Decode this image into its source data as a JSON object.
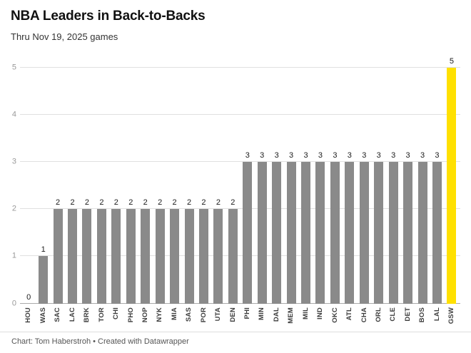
{
  "header": {
    "title": "NBA Leaders in Back-to-Backs",
    "subtitle": "Thru Nov 19, 2025 games"
  },
  "footer": {
    "credit": "Chart: Tom Haberstroh • Created with Datawrapper"
  },
  "chart_data": {
    "type": "bar",
    "title": "NBA Leaders in Back-to-Backs",
    "subtitle": "Thru Nov 19, 2025 games",
    "categories": [
      "HOU",
      "WAS",
      "SAC",
      "LAC",
      "BRK",
      "TOR",
      "CHI",
      "PHO",
      "NOP",
      "NYK",
      "MIA",
      "SAS",
      "POR",
      "UTA",
      "DEN",
      "PHI",
      "MIN",
      "DAL",
      "MEM",
      "MIL",
      "IND",
      "OKC",
      "ATL",
      "CHA",
      "ORL",
      "CLE",
      "DET",
      "BOS",
      "LAL",
      "GSW"
    ],
    "values": [
      0,
      1,
      2,
      2,
      2,
      2,
      2,
      2,
      2,
      2,
      2,
      2,
      2,
      2,
      2,
      3,
      3,
      3,
      3,
      3,
      3,
      3,
      3,
      3,
      3,
      3,
      3,
      3,
      3,
      5
    ],
    "ylim": [
      0,
      5
    ],
    "yticks": [
      0,
      1,
      2,
      3,
      4,
      5
    ],
    "grid": true,
    "legend": "none",
    "data_labels": true,
    "bar_color": "#8a8a8a",
    "highlight_color": "#ffe000",
    "highlight_category": "GSW",
    "xlabel": "",
    "ylabel": ""
  }
}
